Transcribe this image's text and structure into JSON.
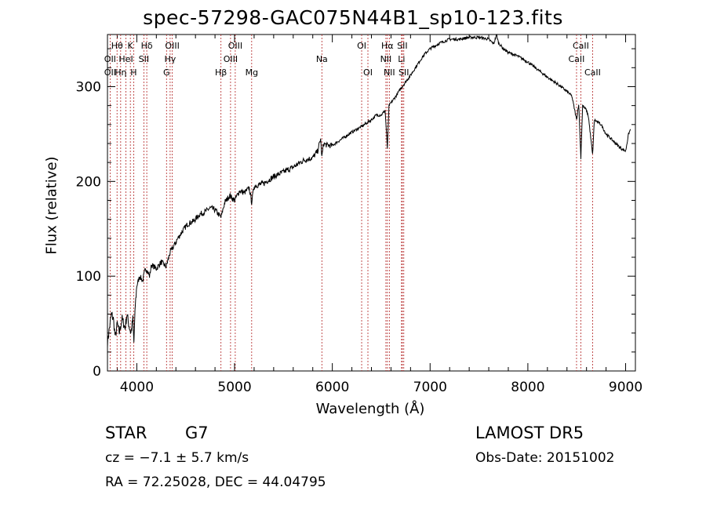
{
  "figure": {
    "title": "spec-57298-GAC075N44B1_sp10-123.fits",
    "xlabel": "Wavelength (Å)",
    "ylabel": "Flux (relative)"
  },
  "info": {
    "object_type": "STAR",
    "subclass": "G7",
    "survey": "LAMOST DR5",
    "cz": "cz = −7.1 ± 5.7 km/s",
    "obs_date": "Obs-Date: 20151002",
    "radec": "RA =  72.25028, DEC =  44.04795"
  },
  "colors": {
    "spectrum": "#000000",
    "line_markers": "#b22222",
    "axes": "#000000"
  },
  "chart_data": {
    "type": "line",
    "title": "spec-57298-GAC075N44B1_sp10-123.fits",
    "xlabel": "Wavelength (Å)",
    "ylabel": "Flux (relative)",
    "xlim": [
      3700,
      9100
    ],
    "ylim": [
      0,
      355
    ],
    "xticks": [
      4000,
      5000,
      6000,
      7000,
      8000,
      9000
    ],
    "yticks": [
      0,
      100,
      200,
      300
    ],
    "grid": false,
    "legend": "none",
    "spectrum": [
      [
        3700,
        30
      ],
      [
        3720,
        45
      ],
      [
        3740,
        60
      ],
      [
        3760,
        55
      ],
      [
        3780,
        35
      ],
      [
        3800,
        50
      ],
      [
        3820,
        40
      ],
      [
        3850,
        55
      ],
      [
        3880,
        45
      ],
      [
        3900,
        60
      ],
      [
        3920,
        48
      ],
      [
        3940,
        40
      ],
      [
        3960,
        55
      ],
      [
        3970,
        30
      ],
      [
        3985,
        70
      ],
      [
        4000,
        90
      ],
      [
        4030,
        100
      ],
      [
        4060,
        95
      ],
      [
        4080,
        105
      ],
      [
        4100,
        108
      ],
      [
        4130,
        100
      ],
      [
        4150,
        112
      ],
      [
        4200,
        108
      ],
      [
        4250,
        115
      ],
      [
        4300,
        110
      ],
      [
        4340,
        125
      ],
      [
        4380,
        132
      ],
      [
        4420,
        140
      ],
      [
        4470,
        148
      ],
      [
        4520,
        155
      ],
      [
        4580,
        158
      ],
      [
        4640,
        165
      ],
      [
        4700,
        168
      ],
      [
        4750,
        172
      ],
      [
        4800,
        170
      ],
      [
        4861,
        162
      ],
      [
        4900,
        178
      ],
      [
        4950,
        185
      ],
      [
        5000,
        180
      ],
      [
        5050,
        190
      ],
      [
        5100,
        188
      ],
      [
        5150,
        193
      ],
      [
        5175,
        178
      ],
      [
        5200,
        195
      ],
      [
        5300,
        198
      ],
      [
        5400,
        205
      ],
      [
        5500,
        210
      ],
      [
        5600,
        215
      ],
      [
        5700,
        222
      ],
      [
        5800,
        225
      ],
      [
        5850,
        232
      ],
      [
        5880,
        245
      ],
      [
        5893,
        225
      ],
      [
        5910,
        240
      ],
      [
        5950,
        238
      ],
      [
        6000,
        238
      ],
      [
        6100,
        245
      ],
      [
        6200,
        252
      ],
      [
        6300,
        258
      ],
      [
        6400,
        265
      ],
      [
        6450,
        270
      ],
      [
        6500,
        270
      ],
      [
        6540,
        275
      ],
      [
        6563,
        235
      ],
      [
        6580,
        280
      ],
      [
        6650,
        290
      ],
      [
        6700,
        298
      ],
      [
        6750,
        305
      ],
      [
        6800,
        312
      ],
      [
        6850,
        320
      ],
      [
        6900,
        328
      ],
      [
        6950,
        335
      ],
      [
        7000,
        340
      ],
      [
        7100,
        346
      ],
      [
        7200,
        350
      ],
      [
        7300,
        350
      ],
      [
        7400,
        352
      ],
      [
        7500,
        352
      ],
      [
        7600,
        350
      ],
      [
        7650,
        345
      ],
      [
        7680,
        355
      ],
      [
        7700,
        346
      ],
      [
        7750,
        340
      ],
      [
        7800,
        336
      ],
      [
        7900,
        332
      ],
      [
        8000,
        326
      ],
      [
        8100,
        318
      ],
      [
        8200,
        310
      ],
      [
        8300,
        303
      ],
      [
        8400,
        295
      ],
      [
        8450,
        290
      ],
      [
        8498,
        265
      ],
      [
        8520,
        282
      ],
      [
        8542,
        225
      ],
      [
        8560,
        280
      ],
      [
        8600,
        275
      ],
      [
        8620,
        268
      ],
      [
        8662,
        228
      ],
      [
        8680,
        265
      ],
      [
        8750,
        260
      ],
      [
        8800,
        250
      ],
      [
        8850,
        245
      ],
      [
        8900,
        240
      ],
      [
        8950,
        235
      ],
      [
        9000,
        232
      ],
      [
        9030,
        250
      ],
      [
        9050,
        255
      ]
    ],
    "line_markers": [
      {
        "label": "Hθ",
        "x": 3798,
        "row": 0
      },
      {
        "label": "OII",
        "x": 3727,
        "row": 1
      },
      {
        "label": "OII",
        "x": 3727,
        "row": 2
      },
      {
        "label": "Hη",
        "x": 3835,
        "row": 2
      },
      {
        "label": "HeI",
        "x": 3889,
        "row": 1
      },
      {
        "label": "K",
        "x": 3934,
        "row": 0
      },
      {
        "label": "H",
        "x": 3968,
        "row": 2
      },
      {
        "label": "SII",
        "x": 4072,
        "row": 1
      },
      {
        "label": "Hδ",
        "x": 4102,
        "row": 0
      },
      {
        "label": "G",
        "x": 4304,
        "row": 2
      },
      {
        "label": "Hγ",
        "x": 4341,
        "row": 1
      },
      {
        "label": "OIII",
        "x": 4363,
        "row": 0
      },
      {
        "label": "Hβ",
        "x": 4861,
        "row": 2
      },
      {
        "label": "OIII",
        "x": 4959,
        "row": 1
      },
      {
        "label": "OIII",
        "x": 5007,
        "row": 0
      },
      {
        "label": "Mg",
        "x": 5175,
        "row": 2
      },
      {
        "label": "Na",
        "x": 5893,
        "row": 1
      },
      {
        "label": "OI",
        "x": 6300,
        "row": 0
      },
      {
        "label": "OI",
        "x": 6364,
        "row": 2
      },
      {
        "label": "NII",
        "x": 6548,
        "row": 1
      },
      {
        "label": "NII",
        "x": 6583,
        "row": 2
      },
      {
        "label": "Hα",
        "x": 6563,
        "row": 0
      },
      {
        "label": "Li",
        "x": 6708,
        "row": 1
      },
      {
        "label": "SII",
        "x": 6716,
        "row": 0
      },
      {
        "label": "SII",
        "x": 6731,
        "row": 2
      },
      {
        "label": "CaII",
        "x": 8498,
        "row": 1
      },
      {
        "label": "CaII",
        "x": 8542,
        "row": 0
      },
      {
        "label": "CaII",
        "x": 8662,
        "row": 2
      }
    ]
  }
}
